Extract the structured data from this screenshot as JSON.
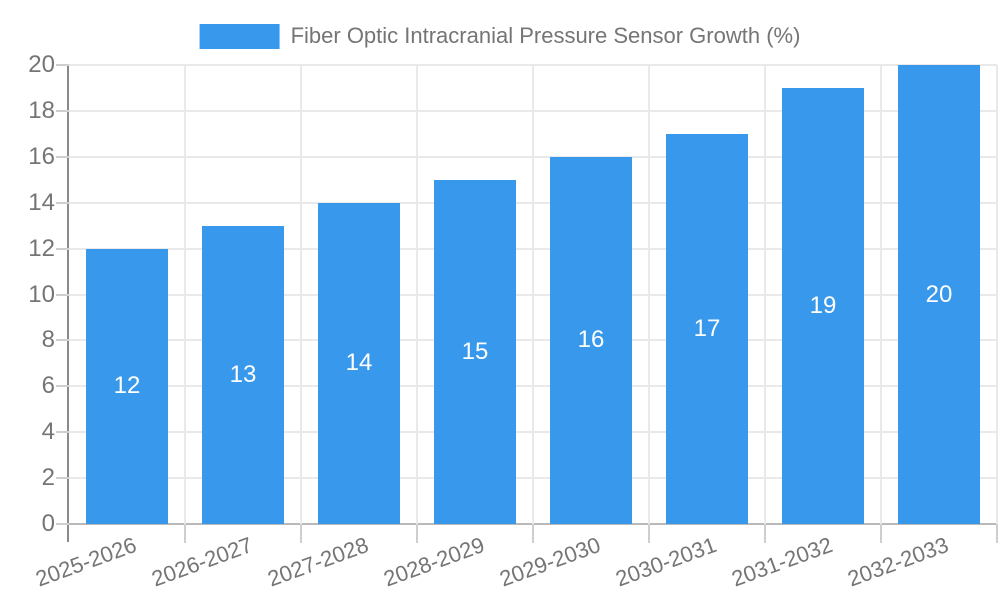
{
  "legend": {
    "label": "Fiber Optic Intracranial Pressure Sensor Growth (%)"
  },
  "colors": {
    "bar": "#3898ec",
    "grid": "#e9e9e9",
    "baseline": "#b9b9b9",
    "axis": "#8a8a8a",
    "tick": "#cfcfcf",
    "text": "#757575",
    "value_label": "#ffffff",
    "background": "#ffffff"
  },
  "chart_data": {
    "type": "bar",
    "title": "Fiber Optic Intracranial Pressure Sensor Growth (%)",
    "categories": [
      "2025-2026",
      "2026-2027",
      "2027-2028",
      "2028-2029",
      "2029-2030",
      "2030-2031",
      "2031-2032",
      "2032-2033"
    ],
    "values": [
      12,
      13,
      14,
      15,
      16,
      17,
      19,
      20
    ],
    "value_labels": [
      "12",
      "13",
      "14",
      "15",
      "16",
      "17",
      "19",
      "20"
    ],
    "yticks": [
      0,
      2,
      4,
      6,
      8,
      10,
      12,
      14,
      16,
      18,
      20
    ],
    "ylim": [
      0,
      20
    ],
    "xlabel": "",
    "ylabel": "",
    "grid": "on",
    "legend_position": "top-center",
    "value_label_position": "inside-center",
    "x_label_rotation_deg": -20
  }
}
